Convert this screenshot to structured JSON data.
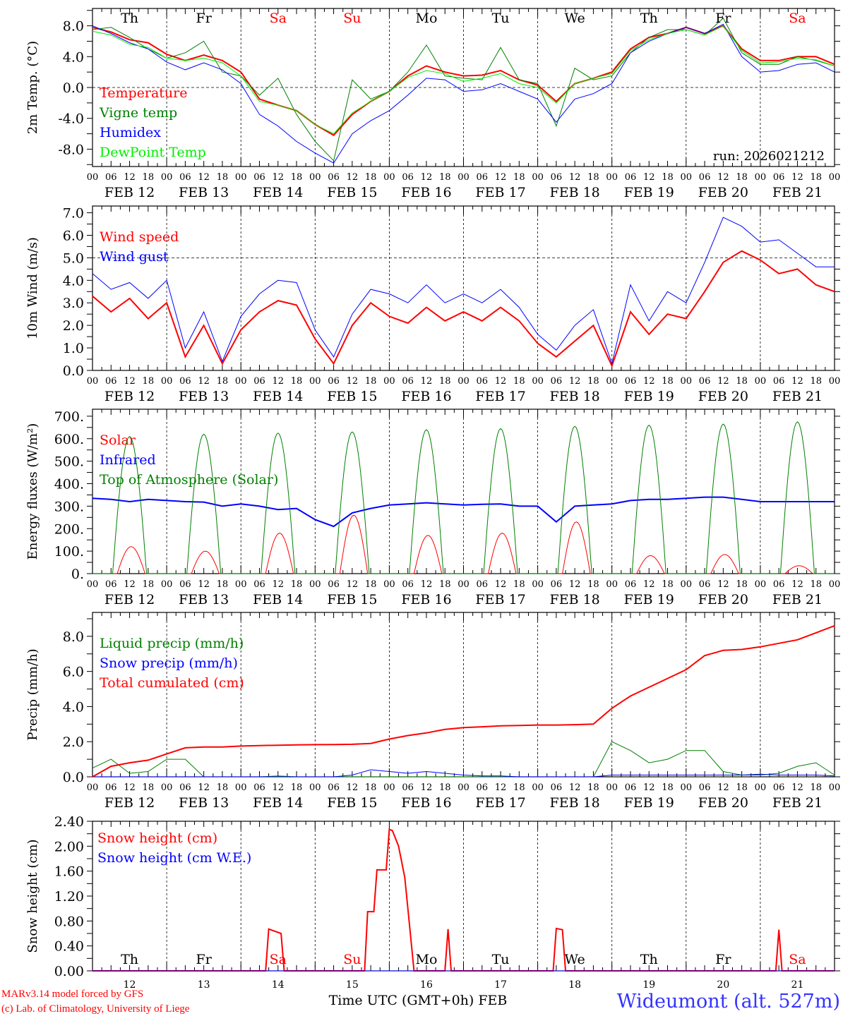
{
  "run_label": "run: 2026021212",
  "footer": {
    "model": "MARv3.14 model forced by GFS",
    "credit": "(c) Lab. of Climatology, University of Liege",
    "xlabel": "Time UTC (GMT+0h) FEB",
    "station": "Wideumont (alt. 527m)"
  },
  "colors": {
    "red": "#ff0000",
    "green": "#008000",
    "blue": "#0000ff",
    "lightgreen": "#00ee00",
    "black": "#000000"
  },
  "day_names": [
    {
      "label": "Th",
      "color": "#000000"
    },
    {
      "label": "Fr",
      "color": "#000000"
    },
    {
      "label": "Sa",
      "color": "#ff0000"
    },
    {
      "label": "Su",
      "color": "#ff0000"
    },
    {
      "label": "Mo",
      "color": "#000000"
    },
    {
      "label": "Tu",
      "color": "#000000"
    },
    {
      "label": "We",
      "color": "#000000"
    },
    {
      "label": "Th",
      "color": "#000000"
    },
    {
      "label": "Fr",
      "color": "#000000"
    },
    {
      "label": "Sa",
      "color": "#ff0000"
    }
  ],
  "hour_ticks": [
    "00",
    "06",
    "12",
    "18"
  ],
  "final_hour_tick": "00",
  "dates": [
    "FEB 12",
    "FEB 13",
    "FEB 14",
    "FEB 15",
    "FEB 16",
    "FEB 17",
    "FEB 18",
    "FEB 19",
    "FEB 20",
    "FEB 21"
  ],
  "day_numbers": [
    "12",
    "13",
    "14",
    "15",
    "16",
    "17",
    "18",
    "19",
    "20",
    "21"
  ],
  "time_hours": [
    0,
    6,
    12,
    18,
    24,
    30,
    36,
    42,
    48,
    54,
    60,
    66,
    72,
    78,
    84,
    90,
    96,
    102,
    108,
    114,
    120,
    126,
    132,
    138,
    144,
    150,
    156,
    162,
    168,
    174,
    180,
    186,
    192,
    198,
    204,
    210,
    216,
    222,
    228,
    234,
    240
  ],
  "chart_data": [
    {
      "type": "line",
      "title": "",
      "ylabel": "2m Temp. (°C)",
      "xlabel": "",
      "ylim": [
        -10.25,
        10.25
      ],
      "grid": false,
      "legend_placement": "left",
      "yticks": [
        8,
        4,
        0,
        -4,
        -8
      ],
      "ytick_labels": [
        "8.0",
        "4.0",
        "0.0",
        "-4.0",
        "-8.0"
      ],
      "hline": 0,
      "series": [
        {
          "name": "Temperature",
          "color": "#ff0000",
          "width": 2,
          "values": [
            7.8,
            7.2,
            6.2,
            5.8,
            4.3,
            3.5,
            4.2,
            3.5,
            2.0,
            -1.5,
            -2.3,
            -3.0,
            -4.8,
            -6.2,
            -3.5,
            -1.8,
            -0.5,
            1.5,
            2.8,
            2.0,
            1.5,
            1.6,
            2.2,
            1.0,
            0.3,
            -1.8,
            0.5,
            1.2,
            2.0,
            5.0,
            6.5,
            7.0,
            7.8,
            7.0,
            8.0,
            5.0,
            3.5,
            3.5,
            4.0,
            4.0,
            3.0
          ]
        },
        {
          "name": "Vigne temp",
          "color": "#008000",
          "width": 1,
          "values": [
            7.5,
            7.8,
            6.5,
            5.0,
            3.8,
            4.5,
            6.0,
            2.0,
            1.5,
            -1.0,
            1.2,
            -3.5,
            -7.0,
            -9.5,
            1.0,
            -1.5,
            -0.5,
            2.0,
            5.5,
            1.5,
            1.2,
            1.0,
            5.2,
            1.0,
            0.5,
            -5.0,
            2.5,
            1.0,
            1.5,
            4.5,
            6.5,
            7.5,
            7.5,
            6.8,
            9.0,
            4.5,
            3.0,
            3.0,
            4.0,
            3.5,
            2.8
          ]
        },
        {
          "name": "Humidex",
          "color": "#0000ff",
          "width": 1,
          "values": [
            8.0,
            7.0,
            5.8,
            5.0,
            3.3,
            2.3,
            3.2,
            2.3,
            0.5,
            -3.5,
            -5.0,
            -7.0,
            -8.5,
            -9.8,
            -6.0,
            -4.3,
            -3.0,
            -1.0,
            1.2,
            1.0,
            -0.5,
            -0.3,
            0.5,
            -0.5,
            -1.5,
            -4.5,
            -1.5,
            -0.8,
            0.5,
            4.5,
            6.0,
            7.0,
            7.8,
            7.0,
            8.2,
            4.0,
            2.0,
            2.2,
            3.0,
            3.2,
            2.0
          ]
        },
        {
          "name": "DewPoint Temp",
          "color": "#00ee00",
          "width": 1,
          "values": [
            7.3,
            6.8,
            5.6,
            5.2,
            3.8,
            3.5,
            3.8,
            3.2,
            1.5,
            -1.8,
            -2.3,
            -3.0,
            -4.8,
            -6.0,
            -3.3,
            -1.8,
            -0.5,
            1.3,
            2.2,
            1.8,
            0.8,
            1.2,
            1.8,
            0.5,
            0.0,
            -2.0,
            0.5,
            1.2,
            1.8,
            4.8,
            6.2,
            7.0,
            7.5,
            6.8,
            8.0,
            4.8,
            3.2,
            3.3,
            3.8,
            3.6,
            2.8
          ]
        }
      ]
    },
    {
      "type": "line",
      "title": "",
      "ylabel": "10m Wind (m/s)",
      "xlabel": "",
      "ylim": [
        0,
        7.3
      ],
      "grid": false,
      "legend_placement": "left",
      "yticks": [
        0,
        1,
        2,
        3,
        4,
        5,
        6,
        7
      ],
      "ytick_labels": [
        "0.0",
        "1.0",
        "2.0",
        "3.0",
        "4.0",
        "5.0",
        "6.0",
        "7.0"
      ],
      "hline": 5,
      "series": [
        {
          "name": "Wind speed",
          "color": "#ff0000",
          "width": 2,
          "values": [
            3.3,
            2.6,
            3.2,
            2.3,
            3.0,
            0.6,
            2.0,
            0.3,
            1.8,
            2.6,
            3.1,
            2.9,
            1.4,
            0.3,
            2.0,
            3.0,
            2.4,
            2.1,
            2.8,
            2.2,
            2.6,
            2.2,
            2.8,
            2.2,
            1.2,
            0.6,
            1.3,
            2.0,
            0.2,
            2.6,
            1.6,
            2.5,
            2.3,
            3.5,
            4.8,
            5.3,
            4.9,
            4.3,
            4.5,
            3.8,
            3.5
          ]
        },
        {
          "name": "Wind gust",
          "color": "#0000ff",
          "width": 1,
          "values": [
            4.3,
            3.6,
            3.9,
            3.2,
            4.0,
            1.0,
            2.6,
            0.4,
            2.4,
            3.4,
            4.0,
            3.9,
            1.8,
            0.6,
            2.5,
            3.6,
            3.4,
            3.0,
            3.8,
            3.0,
            3.4,
            3.0,
            3.6,
            2.8,
            1.6,
            0.9,
            2.0,
            2.7,
            0.3,
            3.8,
            2.2,
            3.5,
            3.0,
            4.8,
            6.8,
            6.4,
            5.7,
            5.8,
            5.2,
            4.6,
            4.6
          ]
        }
      ]
    },
    {
      "type": "line",
      "title": "",
      "ylabel": "Energy fluxes (W/m²)",
      "xlabel": "",
      "ylim": [
        0,
        731
      ],
      "grid": false,
      "legend_placement": "left",
      "yticks": [
        0,
        100,
        200,
        300,
        400,
        500,
        600,
        700
      ],
      "ytick_labels": [
        "0.",
        "100.",
        "200.",
        "300.",
        "400.",
        "500.",
        "600.",
        "700."
      ],
      "hline": null,
      "series": [
        {
          "name": "Solar",
          "color": "#ff0000",
          "width": 1,
          "daily_peak": [
            120,
            100,
            180,
            260,
            170,
            180,
            230,
            80,
            85,
            35
          ],
          "daylight_hours": [
            8,
            17
          ]
        },
        {
          "name": "Infrared",
          "color": "#0000ff",
          "width": 2,
          "values": [
            335,
            330,
            320,
            330,
            325,
            320,
            318,
            300,
            310,
            300,
            285,
            290,
            240,
            210,
            270,
            290,
            305,
            310,
            315,
            310,
            305,
            308,
            310,
            300,
            300,
            230,
            300,
            305,
            310,
            325,
            330,
            330,
            335,
            340,
            340,
            330,
            320,
            320,
            320,
            320,
            320
          ]
        },
        {
          "name": "Top of Atmosphere (Solar)",
          "color": "#008000",
          "width": 1,
          "daily_peak": [
            610,
            620,
            625,
            630,
            640,
            645,
            655,
            660,
            665,
            675
          ],
          "daylight_hours": [
            6.5,
            17.5
          ]
        }
      ]
    },
    {
      "type": "line",
      "title": "",
      "ylabel": "Precip (mm/h)",
      "xlabel": "",
      "ylim": [
        0,
        9.36
      ],
      "grid": false,
      "legend_placement": "left",
      "yticks": [
        0,
        2,
        4,
        6,
        8
      ],
      "ytick_labels": [
        "0.0",
        "2.0",
        "4.0",
        "6.0",
        "8.0"
      ],
      "hline": null,
      "series": [
        {
          "name": "Liquid precip (mm/h)",
          "color": "#008000",
          "width": 1,
          "values": [
            0.5,
            1.0,
            0.2,
            0.3,
            1.0,
            1.0,
            0.0,
            0.0,
            0.0,
            0.0,
            0.05,
            0.0,
            0.0,
            0.0,
            0.0,
            0.0,
            0.0,
            0.0,
            0.0,
            0.0,
            0.0,
            0.0,
            0.0,
            0.0,
            0.0,
            0.0,
            0.0,
            0.0,
            2.0,
            1.5,
            0.8,
            1.0,
            1.5,
            1.5,
            0.3,
            0.1,
            0.1,
            0.2,
            0.6,
            0.8,
            0.1
          ]
        },
        {
          "name": "Snow precip (mm/h)",
          "color": "#0000ff",
          "width": 1,
          "values": [
            0,
            0,
            0,
            0,
            0,
            0,
            0,
            0,
            0,
            0,
            0,
            0,
            0,
            0,
            0.1,
            0.4,
            0.3,
            0.2,
            0.3,
            0.2,
            0.1,
            0.05,
            0.05,
            0,
            0,
            0,
            0,
            0,
            0.1,
            0.1,
            0.1,
            0.1,
            0.1,
            0.1,
            0.1,
            0.1,
            0.15,
            0.1,
            0.1,
            0.1,
            0.05
          ]
        },
        {
          "name": "Total cumulated (cm)",
          "color": "#ff0000",
          "width": 2,
          "values": [
            0,
            0.6,
            0.8,
            0.95,
            1.3,
            1.65,
            1.7,
            1.7,
            1.75,
            1.78,
            1.8,
            1.82,
            1.83,
            1.84,
            1.85,
            1.9,
            2.15,
            2.35,
            2.5,
            2.7,
            2.8,
            2.85,
            2.9,
            2.92,
            2.95,
            2.95,
            2.97,
            3.0,
            3.9,
            4.6,
            5.1,
            5.6,
            6.1,
            6.9,
            7.2,
            7.25,
            7.4,
            7.6,
            7.8,
            8.2,
            8.6
          ]
        }
      ]
    },
    {
      "type": "line",
      "title": "",
      "ylabel": "Snow height (cm)",
      "xlabel": "Time UTC (GMT+0h) FEB",
      "ylim": [
        0,
        2.4
      ],
      "grid": false,
      "legend_placement": "left",
      "yticks": [
        0,
        0.4,
        0.8,
        1.2,
        1.6,
        2.0,
        2.4
      ],
      "ytick_labels": [
        "0.00",
        "0.40",
        "0.80",
        "1.20",
        "1.60",
        "2.00",
        "2.40"
      ],
      "hline": null,
      "series": [
        {
          "name": "Snow height (cm)",
          "color": "#ff0000",
          "width": 2,
          "points": [
            [
              0,
              0
            ],
            [
              56,
              0
            ],
            [
              57,
              0.67
            ],
            [
              61,
              0.6
            ],
            [
              62,
              0
            ],
            [
              88,
              0
            ],
            [
              89,
              0.95
            ],
            [
              91,
              0.95
            ],
            [
              92,
              1.62
            ],
            [
              95,
              1.62
            ],
            [
              96,
              2.27
            ],
            [
              97,
              2.25
            ],
            [
              99,
              2.0
            ],
            [
              101,
              1.5
            ],
            [
              102,
              1.0
            ],
            [
              104,
              0
            ],
            [
              114,
              0
            ],
            [
              115,
              0.67
            ],
            [
              116,
              0
            ],
            [
              149,
              0
            ],
            [
              150,
              0.68
            ],
            [
              152,
              0.66
            ],
            [
              153,
              0
            ],
            [
              221,
              0
            ],
            [
              222,
              0.66
            ],
            [
              223,
              0
            ],
            [
              240,
              0
            ]
          ]
        },
        {
          "name": "Snow height (cm W.E.)",
          "color": "#0000ff",
          "width": 1,
          "points": [
            [
              0,
              0
            ],
            [
              240,
              0
            ]
          ]
        }
      ]
    }
  ]
}
